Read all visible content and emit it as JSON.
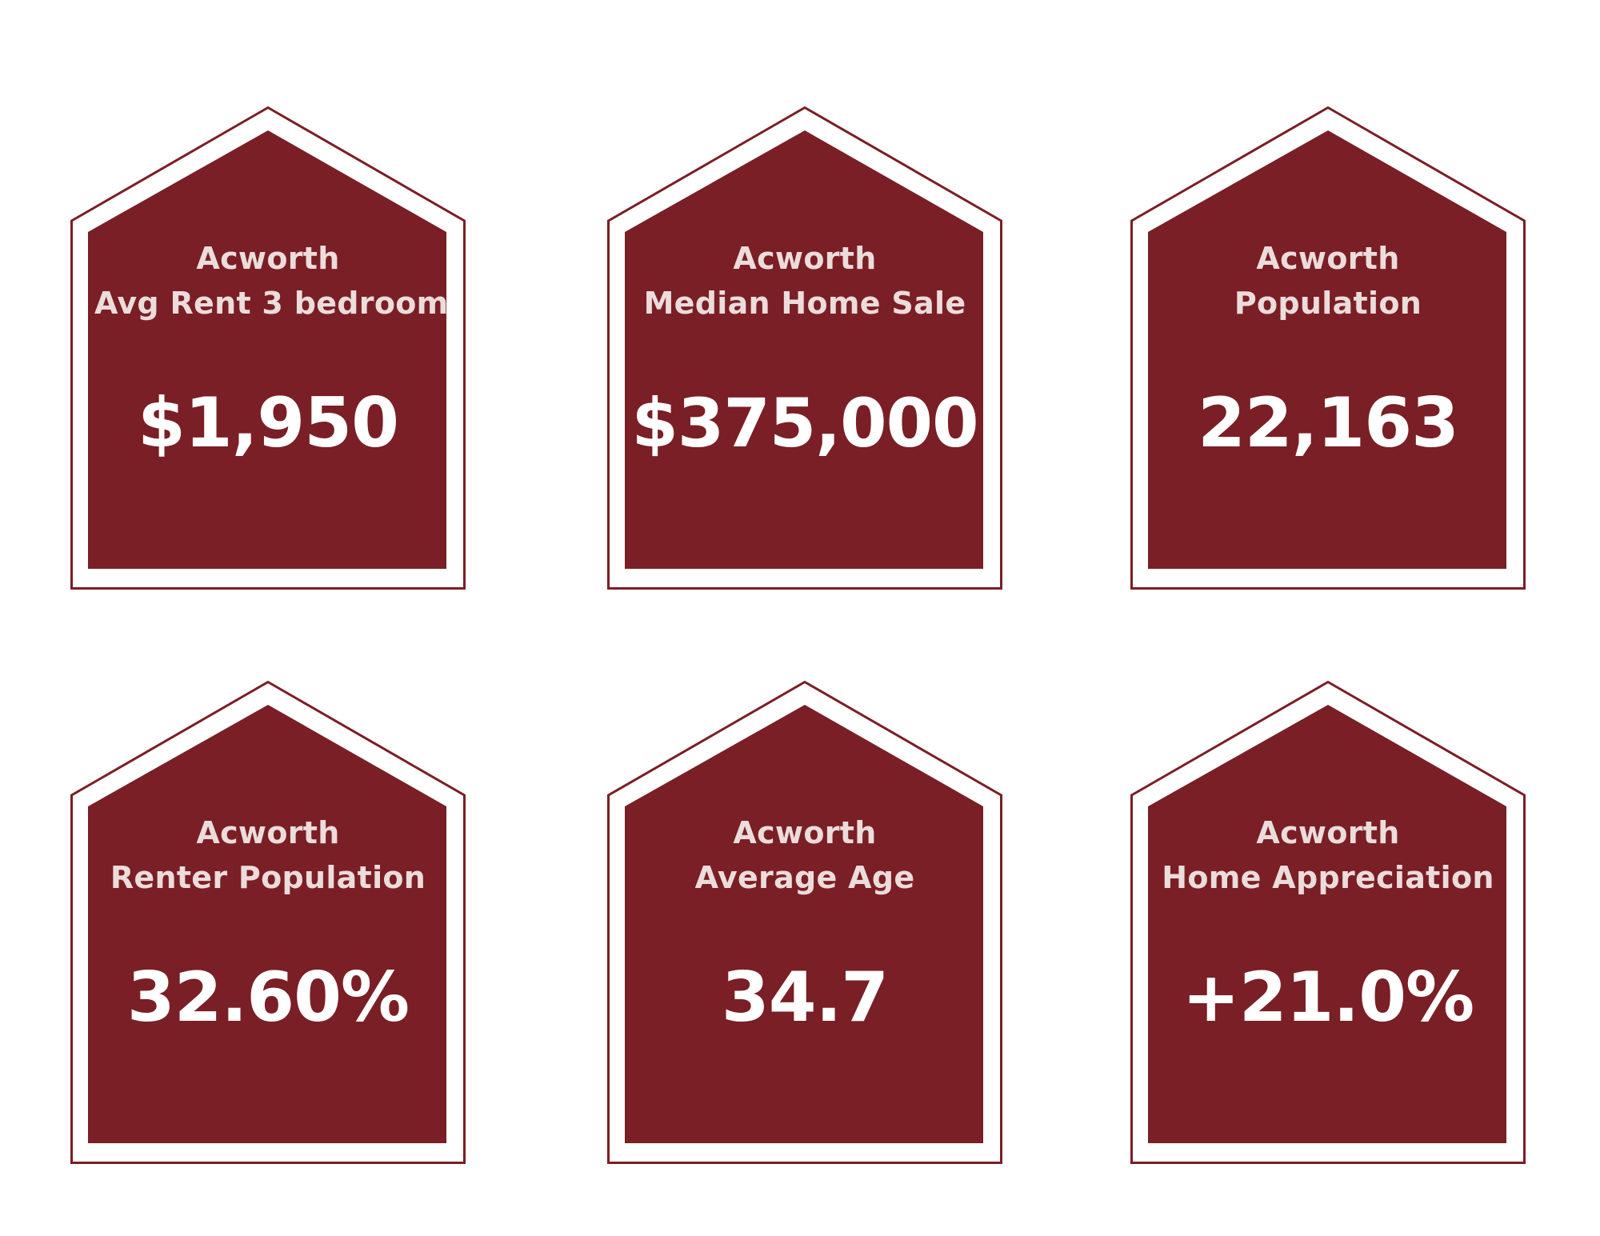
{
  "colors": {
    "accent": "#7a1f25",
    "title_text": "#ecdcdc",
    "value_text": "#ffffff",
    "background": "#ffffff"
  },
  "cards": [
    {
      "city": "Acworth",
      "metric": "Avg Rent 3 bedroom",
      "value": "$1,950",
      "icon": "house-shape"
    },
    {
      "city": "Acworth",
      "metric": "Median Home Sale",
      "value": "$375,000",
      "icon": "house-shape"
    },
    {
      "city": "Acworth",
      "metric": "Population",
      "value": "22,163",
      "icon": "house-shape"
    },
    {
      "city": "Acworth",
      "metric": "Renter Population",
      "value": "32.60%",
      "icon": "house-shape"
    },
    {
      "city": "Acworth",
      "metric": "Average Age",
      "value": "34.7",
      "icon": "house-shape"
    },
    {
      "city": "Acworth",
      "metric": "Home Appreciation",
      "value": "+21.0%",
      "icon": "house-shape"
    }
  ]
}
